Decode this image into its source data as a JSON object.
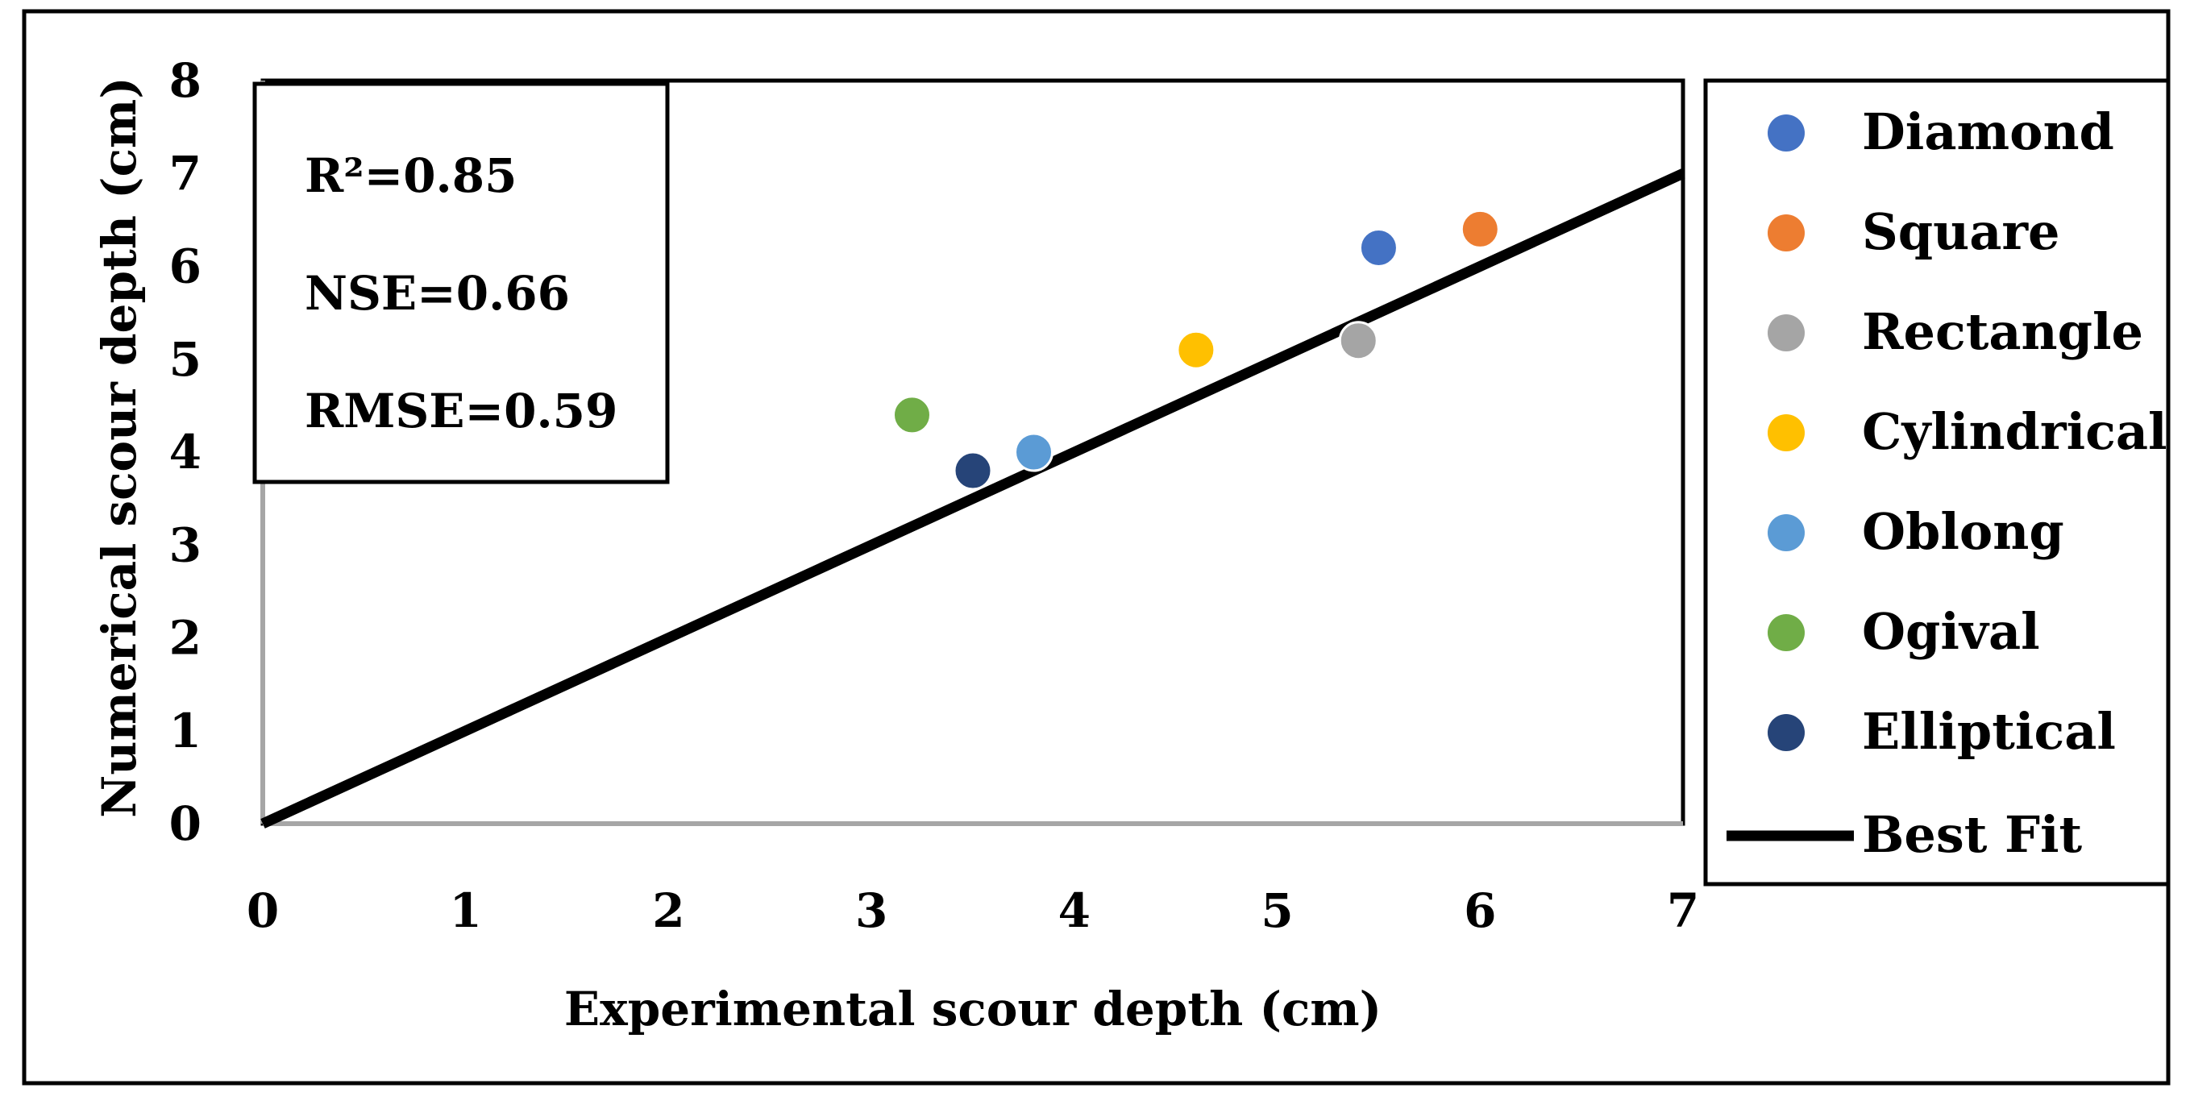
{
  "chart_data": {
    "type": "scatter",
    "title": "",
    "xlabel": "Experimental scour depth (cm)",
    "ylabel": "Numerical scour depth (cm)",
    "xlim": [
      0,
      7
    ],
    "ylim": [
      0,
      8
    ],
    "xticks": [
      "0",
      "1",
      "2",
      "3",
      "4",
      "5",
      "6",
      "7"
    ],
    "yticks": [
      "0",
      "1",
      "2",
      "3",
      "4",
      "5",
      "6",
      "7",
      "8"
    ],
    "grid": false,
    "legend_position": "right",
    "series": [
      {
        "name": "Diamond",
        "color": "#4472C4",
        "x": 5.5,
        "y": 6.2
      },
      {
        "name": "Square",
        "color": "#ED7D31",
        "x": 6.0,
        "y": 6.4
      },
      {
        "name": "Rectangle",
        "color": "#A5A5A5",
        "x": 5.4,
        "y": 5.2
      },
      {
        "name": "Cylindrical",
        "color": "#FFC000",
        "x": 4.6,
        "y": 5.1
      },
      {
        "name": "Oblong",
        "color": "#5B9BD5",
        "x": 3.8,
        "y": 4.0
      },
      {
        "name": "Ogival",
        "color": "#70AD47",
        "x": 3.2,
        "y": 4.4
      },
      {
        "name": "Elliptical",
        "color": "#264478",
        "x": 3.5,
        "y": 3.8
      }
    ],
    "best_fit": {
      "name": "Best Fit",
      "color": "#000000",
      "x": [
        0,
        7
      ],
      "y": [
        0,
        7
      ]
    },
    "stats": {
      "r2": "R²=0.85",
      "nse": "NSE=0.66",
      "rmse": "RMSE=0.59"
    }
  }
}
